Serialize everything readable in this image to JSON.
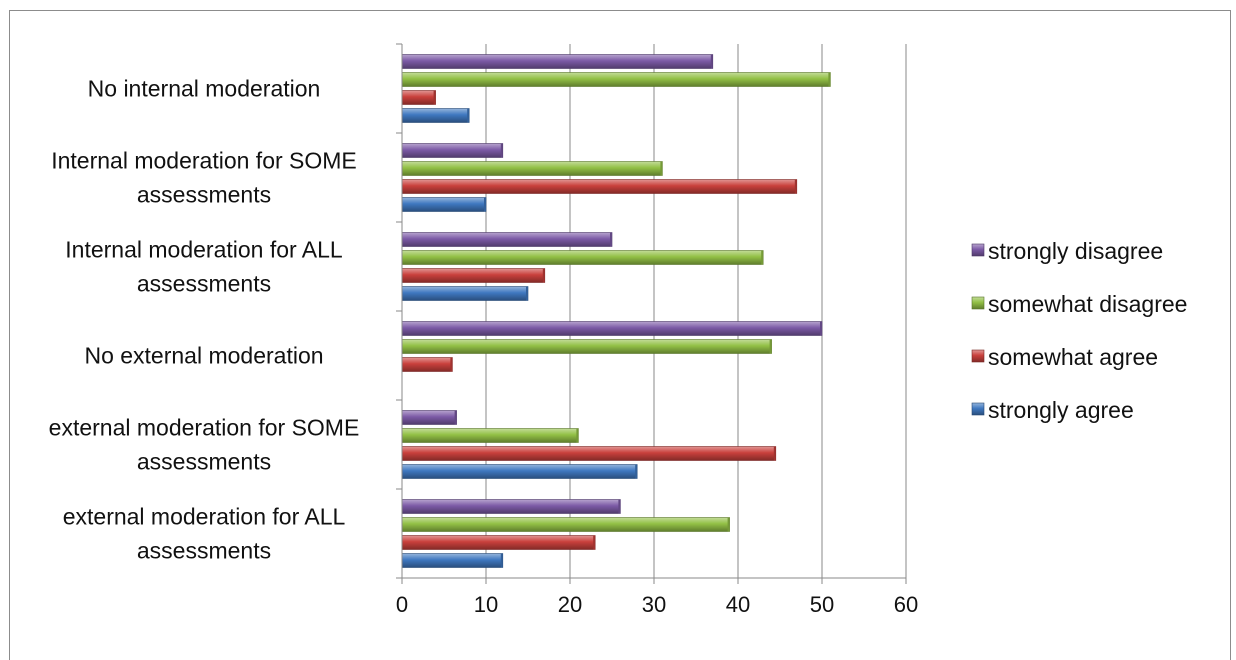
{
  "chart_data": {
    "type": "bar",
    "orientation": "horizontal",
    "title": "",
    "xlabel": "",
    "ylabel": "",
    "xlim": [
      0,
      60
    ],
    "xticks": [
      0,
      10,
      20,
      30,
      40,
      50,
      60
    ],
    "grid": "vertical",
    "legend_position": "right",
    "categories": [
      [
        "No internal moderation"
      ],
      [
        "Internal moderation for SOME",
        "assessments"
      ],
      [
        "Internal moderation for ALL",
        "assessments"
      ],
      [
        "No external moderation"
      ],
      [
        "external moderation for SOME",
        "assessments"
      ],
      [
        "external moderation for ALL",
        "assessments"
      ]
    ],
    "series": [
      {
        "name": "strongly disagree",
        "color": "#7c5aa6",
        "values": [
          37,
          12,
          25,
          50,
          6.5,
          26
        ]
      },
      {
        "name": "somewhat disagree",
        "color": "#92c045",
        "values": [
          51,
          31,
          43,
          44,
          21,
          39
        ]
      },
      {
        "name": "somewhat agree",
        "color": "#c9403c",
        "values": [
          4,
          47,
          17,
          6,
          44.5,
          23
        ]
      },
      {
        "name": "strongly agree",
        "color": "#3f78c0",
        "values": [
          8,
          10,
          15,
          0,
          28,
          12
        ]
      }
    ]
  }
}
